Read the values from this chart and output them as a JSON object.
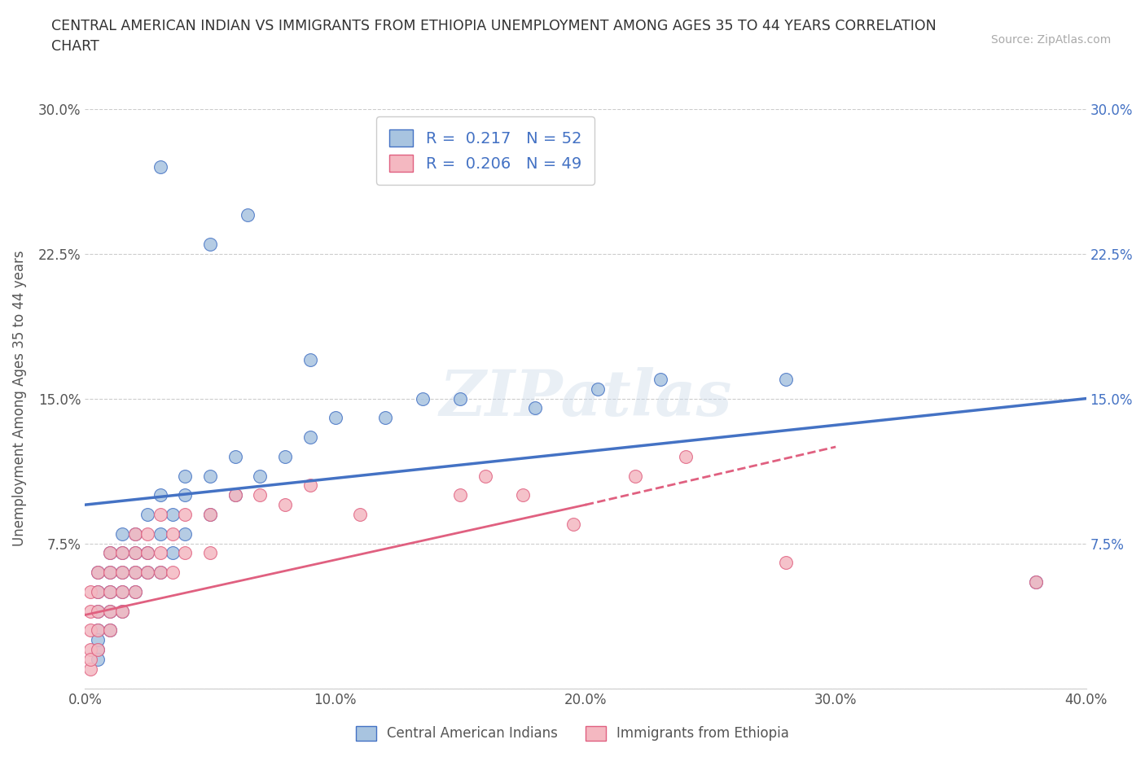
{
  "title": "CENTRAL AMERICAN INDIAN VS IMMIGRANTS FROM ETHIOPIA UNEMPLOYMENT AMONG AGES 35 TO 44 YEARS CORRELATION\nCHART",
  "source_text": "Source: ZipAtlas.com",
  "ylabel": "Unemployment Among Ages 35 to 44 years",
  "xlabel": "",
  "xlim": [
    0.0,
    0.4
  ],
  "ylim": [
    0.0,
    0.3
  ],
  "xticks": [
    0.0,
    0.1,
    0.2,
    0.3,
    0.4
  ],
  "xticklabels": [
    "0.0%",
    "10.0%",
    "20.0%",
    "30.0%",
    "40.0%"
  ],
  "yticks": [
    0.0,
    0.075,
    0.15,
    0.225,
    0.3
  ],
  "yticklabels": [
    "",
    "7.5%",
    "15.0%",
    "22.5%",
    "30.0%"
  ],
  "blue_R": 0.217,
  "blue_N": 52,
  "pink_R": 0.206,
  "pink_N": 49,
  "blue_color": "#a8c4e0",
  "pink_color": "#f4b8c1",
  "blue_line_color": "#4472c4",
  "pink_line_color": "#e06080",
  "watermark": "ZIPatlas",
  "legend_label_blue": "Central American Indians",
  "legend_label_pink": "Immigrants from Ethiopia",
  "blue_trendline": [
    0.0,
    0.4,
    0.095,
    0.15
  ],
  "pink_trendline_solid": [
    0.0,
    0.2,
    0.038,
    0.095
  ],
  "pink_trendline_dash": [
    0.2,
    0.3,
    0.095,
    0.125
  ],
  "blue_scatter_x": [
    0.005,
    0.005,
    0.005,
    0.005,
    0.005,
    0.005,
    0.005,
    0.01,
    0.01,
    0.01,
    0.01,
    0.01,
    0.015,
    0.015,
    0.015,
    0.015,
    0.015,
    0.02,
    0.02,
    0.02,
    0.02,
    0.025,
    0.025,
    0.025,
    0.03,
    0.03,
    0.03,
    0.035,
    0.035,
    0.04,
    0.04,
    0.04,
    0.05,
    0.05,
    0.06,
    0.06,
    0.07,
    0.08,
    0.09,
    0.1,
    0.12,
    0.15,
    0.18,
    0.205,
    0.23,
    0.09,
    0.03,
    0.05,
    0.065,
    0.28,
    0.38,
    0.135
  ],
  "blue_scatter_y": [
    0.02,
    0.03,
    0.04,
    0.05,
    0.06,
    0.025,
    0.015,
    0.04,
    0.06,
    0.07,
    0.05,
    0.03,
    0.05,
    0.07,
    0.08,
    0.06,
    0.04,
    0.06,
    0.08,
    0.07,
    0.05,
    0.07,
    0.09,
    0.06,
    0.08,
    0.1,
    0.06,
    0.09,
    0.07,
    0.1,
    0.08,
    0.11,
    0.11,
    0.09,
    0.12,
    0.1,
    0.11,
    0.12,
    0.13,
    0.14,
    0.14,
    0.15,
    0.145,
    0.155,
    0.16,
    0.17,
    0.27,
    0.23,
    0.245,
    0.16,
    0.055,
    0.15
  ],
  "pink_scatter_x": [
    0.002,
    0.002,
    0.002,
    0.002,
    0.002,
    0.002,
    0.005,
    0.005,
    0.005,
    0.005,
    0.005,
    0.01,
    0.01,
    0.01,
    0.01,
    0.01,
    0.015,
    0.015,
    0.015,
    0.015,
    0.02,
    0.02,
    0.02,
    0.02,
    0.025,
    0.025,
    0.025,
    0.03,
    0.03,
    0.03,
    0.035,
    0.035,
    0.04,
    0.04,
    0.05,
    0.05,
    0.06,
    0.07,
    0.08,
    0.09,
    0.11,
    0.15,
    0.16,
    0.175,
    0.195,
    0.22,
    0.24,
    0.28,
    0.38
  ],
  "pink_scatter_y": [
    0.01,
    0.02,
    0.03,
    0.04,
    0.05,
    0.015,
    0.02,
    0.03,
    0.04,
    0.05,
    0.06,
    0.03,
    0.05,
    0.06,
    0.07,
    0.04,
    0.04,
    0.06,
    0.07,
    0.05,
    0.05,
    0.07,
    0.08,
    0.06,
    0.06,
    0.08,
    0.07,
    0.07,
    0.09,
    0.06,
    0.08,
    0.06,
    0.09,
    0.07,
    0.09,
    0.07,
    0.1,
    0.1,
    0.095,
    0.105,
    0.09,
    0.1,
    0.11,
    0.1,
    0.085,
    0.11,
    0.12,
    0.065,
    0.055
  ]
}
